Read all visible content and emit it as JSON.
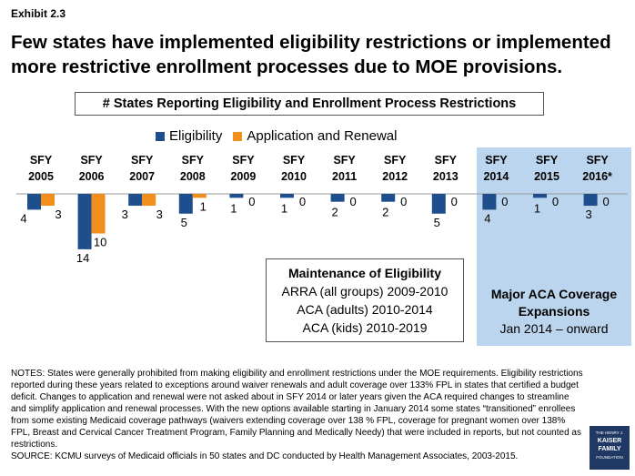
{
  "exhibit_label": "Exhibit 2.3",
  "headline_line1": "Few states have implemented eligibility restrictions or implemented",
  "headline_line2": "more restrictive enrollment processes due to MOE provisions.",
  "chart_data": {
    "type": "bar",
    "title": "# States Reporting Eligibility and Enrollment Process Restrictions",
    "categories_line1": [
      "SFY",
      "SFY",
      "SFY",
      "SFY",
      "SFY",
      "SFY",
      "SFY",
      "SFY",
      "SFY",
      "SFY",
      "SFY",
      "SFY"
    ],
    "categories_line2": [
      "2005",
      "2006",
      "2007",
      "2008",
      "2009",
      "2010",
      "2011",
      "2012",
      "2013",
      "2014",
      "2015",
      "2016*"
    ],
    "series": [
      {
        "name": "Eligibility",
        "color": "#1f4e8c",
        "values": [
          4,
          14,
          3,
          5,
          1,
          1,
          2,
          2,
          5,
          4,
          1,
          3
        ]
      },
      {
        "name": "Application and Renewal",
        "color": "#f28e1c",
        "values": [
          3,
          10,
          3,
          1,
          0,
          0,
          0,
          0,
          0,
          0,
          0,
          0
        ]
      }
    ],
    "orientation": "downward",
    "ylim": [
      0,
      14
    ]
  },
  "moe_box": {
    "title": "Maintenance of Eligibility",
    "lines": [
      "ARRA (all groups) 2009-2010",
      "ACA (adults) 2010-2014",
      "ACA (kids) 2010-2019"
    ]
  },
  "aca_box": {
    "title_line1": "Major ACA Coverage",
    "title_line2": "Expansions",
    "subtitle": "Jan 2014 – onward"
  },
  "notes": "NOTES: States were generally prohibited from making eligibility and enrollment restrictions under the MOE requirements. Eligibility restrictions reported during these years related to exceptions around waiver renewals and adult coverage over 133% FPL in states that certified a budget deficit. Changes to application and renewal were not asked about in SFY 2014 or later years given the ACA required changes to streamline and simplify application and renewal processes. With the new options available starting in January 2014 some states “transitioned” enrollees from some existing Medicaid coverage pathways (waivers extending coverage over 138 % FPL, coverage for pregnant women over 138% FPL, Breast and Cervical Cancer Treatment Program, Family Planning and Medically Needy) that were included in reports, but not counted as restrictions.",
  "source": "SOURCE: KCMU surveys of Medicaid officials in 50 states and DC conducted by Health Management Associates, 2003-2015.",
  "logo": {
    "line0": "THE HENRY J.",
    "line1": "KAISER",
    "line2": "FAMILY",
    "line3": "FOUNDATION"
  }
}
